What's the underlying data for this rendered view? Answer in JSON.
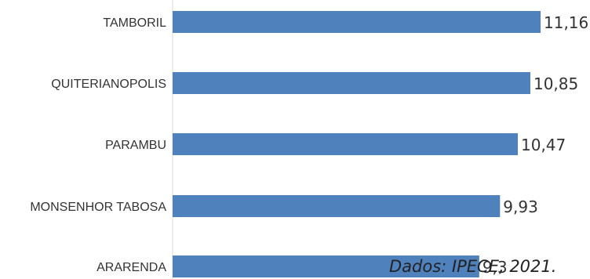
{
  "chart_data": {
    "type": "bar",
    "orientation": "horizontal",
    "categories": [
      "TAMBORIL",
      "QUITERIANOPOLIS",
      "PARAMBU",
      "MONSENHOR TABOSA",
      "ARARENDA"
    ],
    "values": [
      11.16,
      10.85,
      10.47,
      9.93,
      9.3
    ],
    "value_labels": [
      "11,16",
      "10,85",
      "10,47",
      "9,93",
      "9,3"
    ],
    "bar_color": "#4f81bd",
    "grid": false,
    "legend": "none"
  },
  "source_note": "Dados: IPECE, 2021."
}
